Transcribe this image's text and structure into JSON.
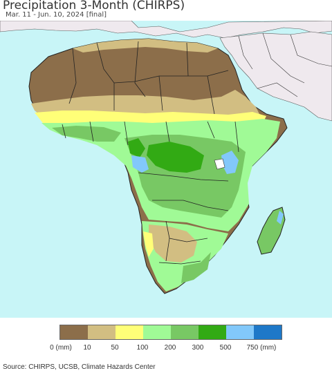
{
  "header": {
    "title": "Precipitation 3-Month (CHIRPS)",
    "subtitle": "Mar. 11 - Jun. 10, 2024 [final]"
  },
  "legend": {
    "colors": [
      "#8c6e4a",
      "#d2be82",
      "#ffff78",
      "#a0fa96",
      "#78c864",
      "#32aa14",
      "#82c8fa",
      "#1e78c8"
    ],
    "labels": [
      "0 (mm)",
      "10",
      "50",
      "100",
      "200",
      "300",
      "500",
      "750 (mm)"
    ]
  },
  "map": {
    "colors": {
      "ocean": "#c8f5f7",
      "non_africa_land": "#efe9ee",
      "desert": "#8c6e4a",
      "arid": "#d2be82",
      "semi_arid": "#ffff78",
      "moderate": "#a0fa96",
      "wet": "#78c864",
      "very_wet": "#32aa14",
      "extreme": "#82c8fa",
      "max": "#1e78c8",
      "border": "#222222"
    }
  },
  "footer": {
    "source": "Source: CHIRPS, UCSB, Climate Hazards Center"
  }
}
